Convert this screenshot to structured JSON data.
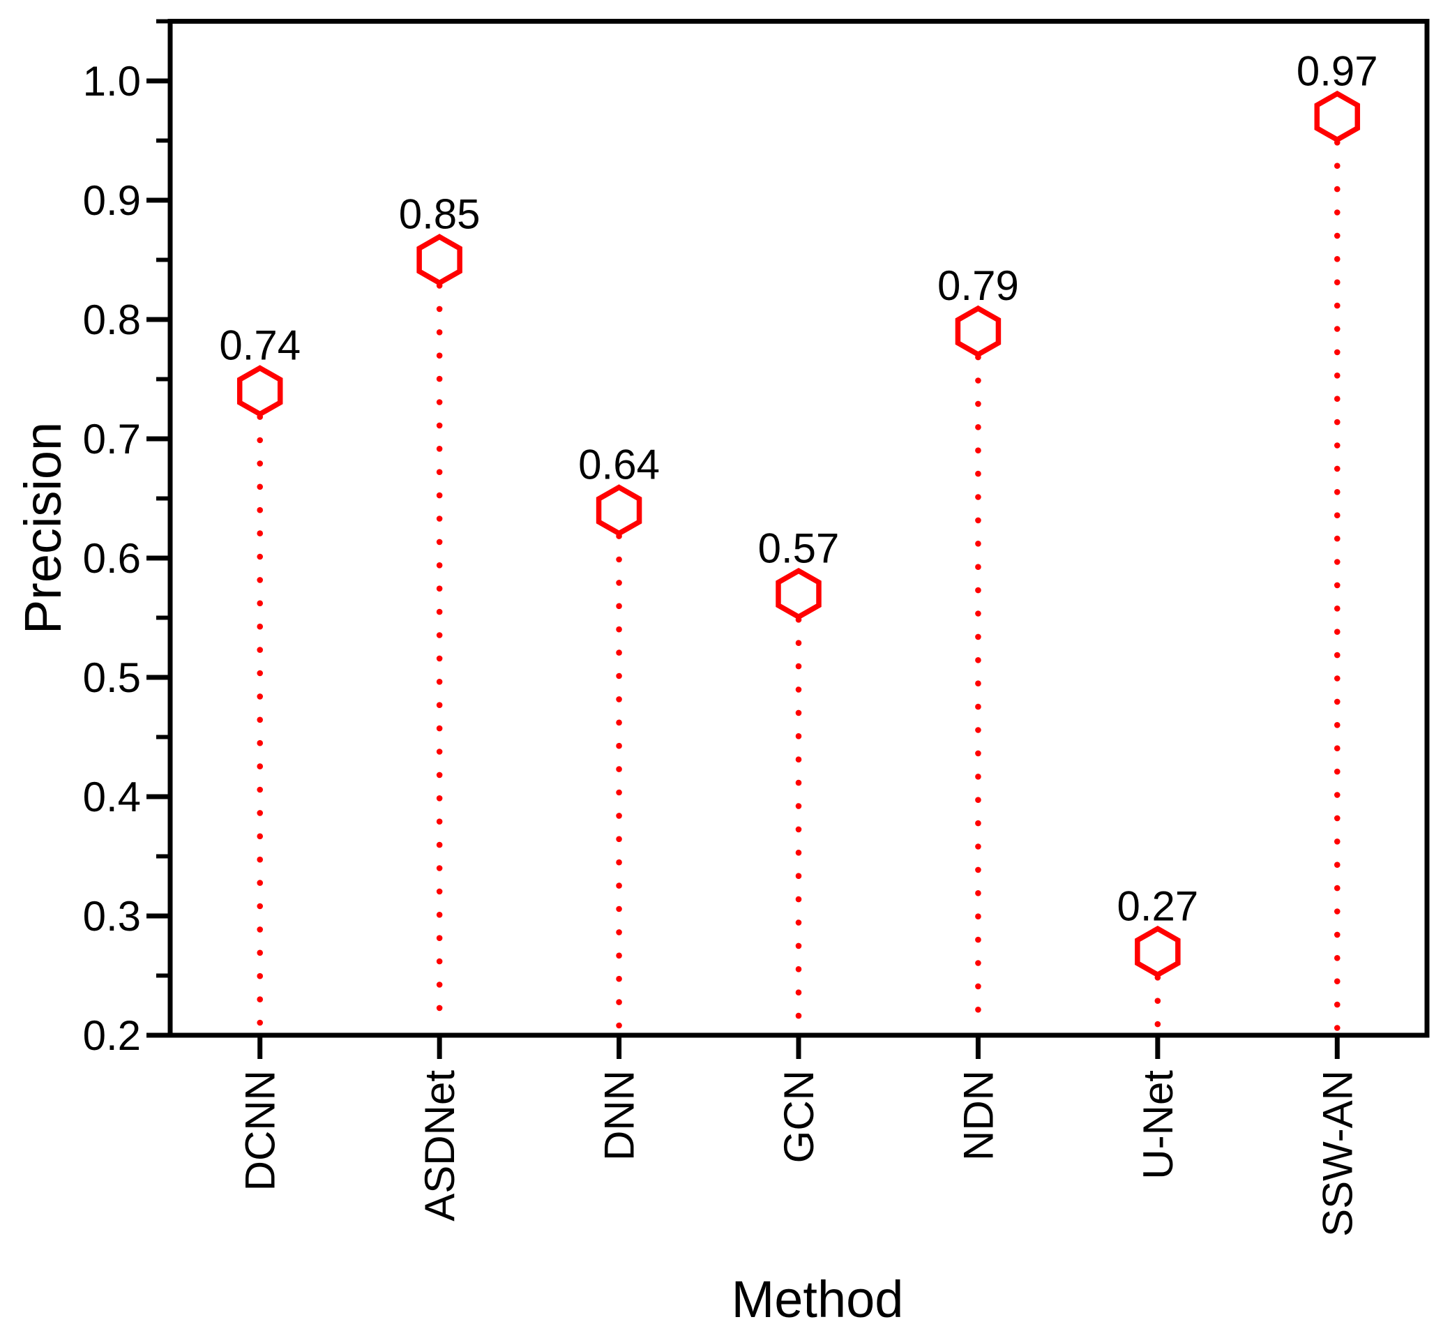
{
  "figure": {
    "background": "#ffffff"
  },
  "chart_data": {
    "type": "scatter",
    "subtype": "lollipop-stems-with-hexagon-markers",
    "title": "",
    "xlabel": "Method",
    "ylabel": "Precision",
    "categories": [
      "DCNN",
      "ASDNet",
      "DNN",
      "GCN",
      "NDN",
      "U-Net",
      "SSW-AN"
    ],
    "values": [
      0.74,
      0.85,
      0.64,
      0.57,
      0.79,
      0.27,
      0.97
    ],
    "value_labels": [
      "0.74",
      "0.85",
      "0.64",
      "0.57",
      "0.79",
      "0.27",
      "0.97"
    ],
    "ylim": [
      0.2,
      1.05
    ],
    "yticks_major": [
      0.2,
      0.3,
      0.4,
      0.5,
      0.6,
      0.7,
      0.8,
      0.9,
      1.0
    ],
    "ytick_labels": [
      "0.2",
      "0.3",
      "0.4",
      "0.5",
      "0.6",
      "0.7",
      "0.8",
      "0.9",
      "1.0"
    ],
    "yticks_minor": [
      0.25,
      0.35,
      0.45,
      0.55,
      0.65,
      0.75,
      0.85,
      0.95,
      1.05
    ],
    "x_tick_rotation_deg": -90,
    "grid": false,
    "legend": null,
    "marker": "hexagon-outline",
    "stem_style": "dotted",
    "colors": {
      "marker": "#ff0000",
      "stem": "#ff0000",
      "axis": "#000000",
      "text": "#000000"
    }
  }
}
